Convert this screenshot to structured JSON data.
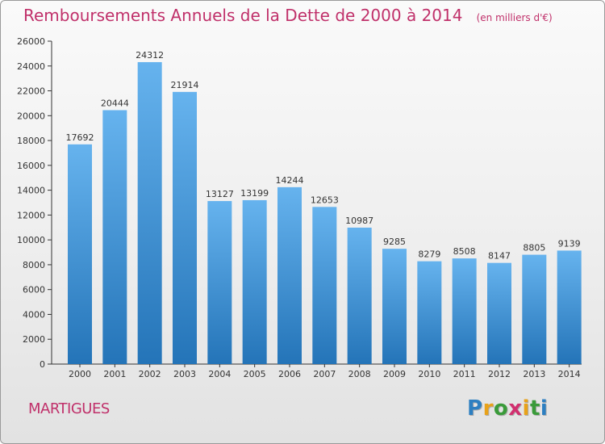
{
  "header": {
    "title": "Remboursements Annuels de la Dette de 2000 à 2014",
    "unit": "(en milliers d'€)"
  },
  "footer": {
    "commune": "MARTIGUES",
    "logo_letters": [
      "P",
      "r",
      "o",
      "x",
      "i",
      "t",
      "i"
    ],
    "logo_colors": [
      "#2d7fc1",
      "#e8a21a",
      "#3a9b3a",
      "#d12f6f",
      "#e8a21a",
      "#3a9b3a",
      "#2d7fc1"
    ]
  },
  "colors": {
    "bar_top": "#66b3ee",
    "bar_bottom": "#2474b8",
    "title": "#c0306a"
  },
  "chart_data": {
    "type": "bar",
    "title": "Remboursements Annuels de la Dette de 2000 à 2014",
    "categories": [
      "2000",
      "2001",
      "2002",
      "2003",
      "2004",
      "2005",
      "2006",
      "2007",
      "2008",
      "2009",
      "2010",
      "2011",
      "2012",
      "2013",
      "2014"
    ],
    "values": [
      17692,
      20444,
      24312,
      21914,
      13127,
      13199,
      14244,
      12653,
      10987,
      9285,
      8279,
      8508,
      8147,
      8805,
      9139
    ],
    "ylim": [
      0,
      26000
    ],
    "yticks": [
      0,
      2000,
      4000,
      6000,
      8000,
      10000,
      12000,
      14000,
      16000,
      18000,
      20000,
      22000,
      24000,
      26000
    ],
    "grid": false,
    "data_labels": true
  }
}
